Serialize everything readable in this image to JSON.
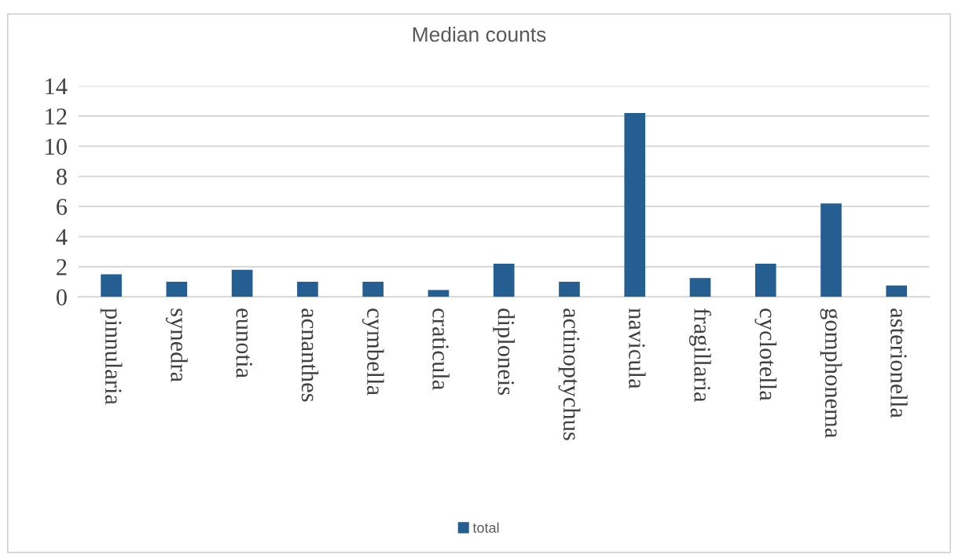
{
  "chart_data": {
    "type": "bar",
    "title": "Median counts",
    "categories": [
      "pinnularia",
      "synedra",
      "eunotia",
      "acnanthes",
      "cymbella",
      "craticula",
      "diploneis",
      "actinoptychus",
      "navicula",
      "fragillaria",
      "cyclotella",
      "gomphonema",
      "asterionella"
    ],
    "series": [
      {
        "name": "total",
        "color": "#255e91",
        "values": [
          1.5,
          1.0,
          1.8,
          1.0,
          1.0,
          0.45,
          2.2,
          1.0,
          12.2,
          1.25,
          2.2,
          6.2,
          0.75
        ]
      }
    ],
    "ylim": [
      0,
      14
    ],
    "yticks": [
      0,
      2,
      4,
      6,
      8,
      10,
      12,
      14
    ],
    "grid": "y",
    "legend": "bottom"
  }
}
